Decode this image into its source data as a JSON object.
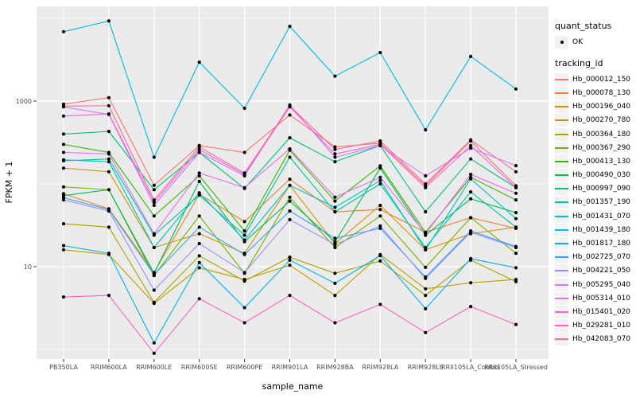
{
  "figure": {
    "background": "#FFFFFF",
    "panel_bg": "#EBEBEB",
    "grid_color": "#FFFFFF",
    "axis_text_color": "#4D4D4D",
    "tick_color": "#333333",
    "point_color": "#000000",
    "legend_key_bg": "#F2F2F2"
  },
  "legend": {
    "quant_status_title": "quant_status",
    "quant_status_items": [
      "OK"
    ],
    "tracking_title": "tracking_id"
  },
  "chart_data": {
    "type": "line",
    "title": "",
    "xlabel": "sample_name",
    "ylabel": "FPKM + 1",
    "y_scale": "log10",
    "ylim": [
      0.7,
      14000
    ],
    "y_ticks": [
      10,
      1000
    ],
    "y_tick_labels": [
      "10",
      "1000"
    ],
    "grid": true,
    "legend_position": "right",
    "point_marker": "black dot, quant_status = OK",
    "categories": [
      "PB350LA",
      "RRIM600LA",
      "RRIM600LE",
      "RRIM600SE",
      "RRIM600PE",
      "RRIM901LA",
      "RRIM928BA",
      "RRIM928LA",
      "RRIM928LE",
      "RRII105LA_Control",
      "RRII105LA_Stressed"
    ],
    "series": [
      {
        "name": "Hb_000012_150",
        "color": "#F8766D",
        "values": [
          920,
          1100,
          96,
          290,
          240,
          680,
          280,
          310,
          95,
          330,
          95
        ]
      },
      {
        "name": "Hb_000078_130",
        "color": "#EA8331",
        "values": [
          76,
          50,
          8.5,
          75,
          35,
          114,
          46,
          49,
          26,
          39,
          29
        ]
      },
      {
        "name": "Hb_000196_040",
        "color": "#D89000",
        "values": [
          155,
          140,
          17,
          25,
          14.5,
          96,
          19,
          55,
          16,
          25,
          30
        ]
      },
      {
        "name": "Hb_000270_780",
        "color": "#C09B00",
        "values": [
          16,
          14,
          3.6,
          9.7,
          7,
          10.4,
          4.5,
          14,
          5.4,
          6.4,
          7
        ]
      },
      {
        "name": "Hb_000364_180",
        "color": "#A3A500",
        "values": [
          33,
          30,
          3.7,
          13.5,
          6.7,
          13,
          8.3,
          11.7,
          4.5,
          12,
          6.6
        ]
      },
      {
        "name": "Hb_000367_290",
        "color": "#7CAE00",
        "values": [
          92,
          85,
          7.8,
          41,
          8.3,
          69,
          17,
          41,
          9.8,
          39,
          14.5
        ]
      },
      {
        "name": "Hb_000413_130",
        "color": "#39B600",
        "values": [
          300,
          240,
          41,
          125,
          27,
          255,
          62,
          165,
          26,
          120,
          64
        ]
      },
      {
        "name": "Hb_000490_030",
        "color": "#00BB4E",
        "values": [
          72,
          85,
          8.3,
          107,
          20,
          62,
          20,
          155,
          24,
          66,
          45
        ]
      },
      {
        "name": "Hb_000997_090",
        "color": "#00BF7D",
        "values": [
          400,
          430,
          85,
          240,
          88,
          360,
          185,
          290,
          46,
          200,
          90
        ]
      },
      {
        "name": "Hb_001357_190",
        "color": "#00C1A3",
        "values": [
          190,
          200,
          24,
          73,
          24,
          210,
          46,
          100,
          17,
          80,
          30
        ]
      },
      {
        "name": "Hb_001431_070",
        "color": "#00BFC4",
        "values": [
          195,
          185,
          17,
          78,
          21,
          96,
          52,
          110,
          16,
          115,
          38
        ]
      },
      {
        "name": "Hb_001439_180",
        "color": "#00BAE0",
        "values": [
          6900,
          9300,
          210,
          2950,
          820,
          8000,
          2000,
          3860,
          450,
          3460,
          1400
        ]
      },
      {
        "name": "Hb_001817_180",
        "color": "#00B0F6",
        "values": [
          18,
          14.5,
          1.2,
          11.2,
          3.2,
          12,
          6.3,
          13.6,
          3.1,
          12.5,
          9.7
        ]
      },
      {
        "name": "Hb_002725_070",
        "color": "#35A2FF",
        "values": [
          68,
          49,
          8,
          30,
          14,
          47,
          22,
          29,
          7.5,
          27,
          17.5
        ]
      },
      {
        "name": "Hb_004221_050",
        "color": "#9590FF",
        "values": [
          64,
          47,
          5.2,
          19,
          8.5,
          37,
          18.5,
          31,
          7.2,
          26,
          17
        ]
      },
      {
        "name": "Hb_005295_040",
        "color": "#C77CFF",
        "values": [
          850,
          690,
          55,
          240,
          125,
          900,
          210,
          290,
          125,
          270,
          166
        ]
      },
      {
        "name": "Hb_005314_010",
        "color": "#E76BF3",
        "values": [
          240,
          230,
          25,
          135,
          90,
          265,
          69,
          120,
          25,
          130,
          77
        ]
      },
      {
        "name": "Hb_015401_020",
        "color": "#FA62DB",
        "values": [
          660,
          700,
          60,
          260,
          130,
          850,
          230,
          300,
          90,
          290,
          90
        ]
      },
      {
        "name": "Hb_029281_010",
        "color": "#FF62BC",
        "values": [
          4.3,
          4.5,
          0.9,
          4.1,
          2.1,
          4.5,
          2.1,
          3.5,
          1.6,
          3.3,
          2
        ]
      },
      {
        "name": "Hb_042083_070",
        "color": "#FF6A98",
        "values": [
          870,
          880,
          64,
          280,
          135,
          880,
          260,
          330,
          100,
          340,
          140
        ]
      }
    ]
  }
}
